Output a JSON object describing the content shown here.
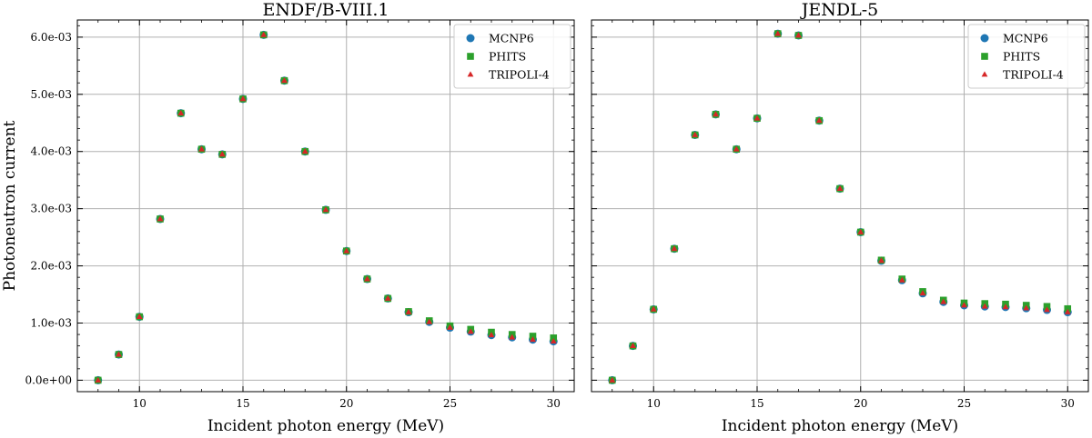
{
  "chart_data": [
    {
      "type": "scatter",
      "title": "ENDF/B-VIII.1",
      "xlabel": "Incident photon energy (MeV)",
      "ylabel": "Photoneutron current",
      "xlim": [
        7.0,
        31.0
      ],
      "ylim": [
        -0.0002,
        0.0063
      ],
      "xticks": [
        10,
        15,
        20,
        25,
        30
      ],
      "xtick_labels": [
        "10",
        "15",
        "20",
        "25",
        "30"
      ],
      "yticks": [
        0.0,
        0.001,
        0.002,
        0.003,
        0.004,
        0.005,
        0.006
      ],
      "ytick_labels": [
        "0.0e+00",
        "1.0e-03",
        "2.0e-03",
        "3.0e-03",
        "4.0e-03",
        "5.0e-03",
        "6.0e-03"
      ],
      "grid": true,
      "legend": "top-right",
      "x": [
        8,
        9,
        10,
        11,
        12,
        13,
        14,
        15,
        16,
        17,
        18,
        19,
        20,
        21,
        22,
        23,
        24,
        25,
        26,
        27,
        28,
        29,
        30
      ],
      "series": [
        {
          "name": "MCNP6",
          "marker": "circle",
          "color": "#1f77b4",
          "values": [
            0.0,
            0.00045,
            0.00111,
            0.00282,
            0.00467,
            0.00404,
            0.00395,
            0.00492,
            0.00604,
            0.00524,
            0.004,
            0.00298,
            0.00226,
            0.00177,
            0.00143,
            0.00119,
            0.00102,
            0.00092,
            0.00085,
            0.00079,
            0.00075,
            0.00071,
            0.00068
          ]
        },
        {
          "name": "PHITS",
          "marker": "square",
          "color": "#2ca02c",
          "values": [
            0.0,
            0.00045,
            0.00111,
            0.00282,
            0.00467,
            0.00404,
            0.00395,
            0.00492,
            0.00604,
            0.00524,
            0.004,
            0.00298,
            0.00226,
            0.00177,
            0.00143,
            0.0012,
            0.00104,
            0.00095,
            0.00089,
            0.00084,
            0.0008,
            0.00077,
            0.00074
          ]
        },
        {
          "name": "TRIPOLI-4",
          "marker": "triangle",
          "color": "#d62728",
          "values": [
            0.0,
            0.00045,
            0.00111,
            0.00282,
            0.00467,
            0.00404,
            0.00395,
            0.00492,
            0.00604,
            0.00524,
            0.004,
            0.00298,
            0.00226,
            0.00177,
            0.00143,
            0.00119,
            0.00102,
            0.00092,
            0.00085,
            0.00079,
            0.00075,
            0.00071,
            0.00068
          ]
        }
      ]
    },
    {
      "type": "scatter",
      "title": "JENDL-5",
      "xlabel": "Incident photon energy (MeV)",
      "ylabel": "",
      "xlim": [
        7.0,
        31.0
      ],
      "ylim": [
        -0.0002,
        0.0063
      ],
      "xticks": [
        10,
        15,
        20,
        25,
        30
      ],
      "xtick_labels": [
        "10",
        "15",
        "20",
        "25",
        "30"
      ],
      "yticks": [
        0.0,
        0.001,
        0.002,
        0.003,
        0.004,
        0.005,
        0.006
      ],
      "ytick_labels": [],
      "grid": true,
      "legend": "top-right",
      "x": [
        8,
        9,
        10,
        11,
        12,
        13,
        14,
        15,
        16,
        17,
        18,
        19,
        20,
        21,
        22,
        23,
        24,
        25,
        26,
        27,
        28,
        29,
        30
      ],
      "series": [
        {
          "name": "MCNP6",
          "marker": "circle",
          "color": "#1f77b4",
          "values": [
            0.0,
            0.0006,
            0.00124,
            0.0023,
            0.00429,
            0.00465,
            0.00404,
            0.00458,
            0.00606,
            0.00603,
            0.00454,
            0.00335,
            0.00259,
            0.00209,
            0.00175,
            0.00152,
            0.00137,
            0.00131,
            0.00129,
            0.00128,
            0.00126,
            0.00123,
            0.00119
          ]
        },
        {
          "name": "PHITS",
          "marker": "square",
          "color": "#2ca02c",
          "values": [
            0.0,
            0.0006,
            0.00124,
            0.0023,
            0.00429,
            0.00465,
            0.00404,
            0.00458,
            0.00606,
            0.00603,
            0.00454,
            0.00335,
            0.00259,
            0.0021,
            0.00177,
            0.00155,
            0.0014,
            0.00135,
            0.00134,
            0.00133,
            0.00131,
            0.00129,
            0.00125
          ]
        },
        {
          "name": "TRIPOLI-4",
          "marker": "triangle",
          "color": "#d62728",
          "values": [
            0.0,
            0.0006,
            0.00124,
            0.0023,
            0.00429,
            0.00465,
            0.00404,
            0.00458,
            0.00606,
            0.00603,
            0.00454,
            0.00335,
            0.00259,
            0.00209,
            0.00175,
            0.00152,
            0.00137,
            0.00131,
            0.00129,
            0.00128,
            0.00126,
            0.00123,
            0.00119
          ]
        }
      ]
    }
  ]
}
